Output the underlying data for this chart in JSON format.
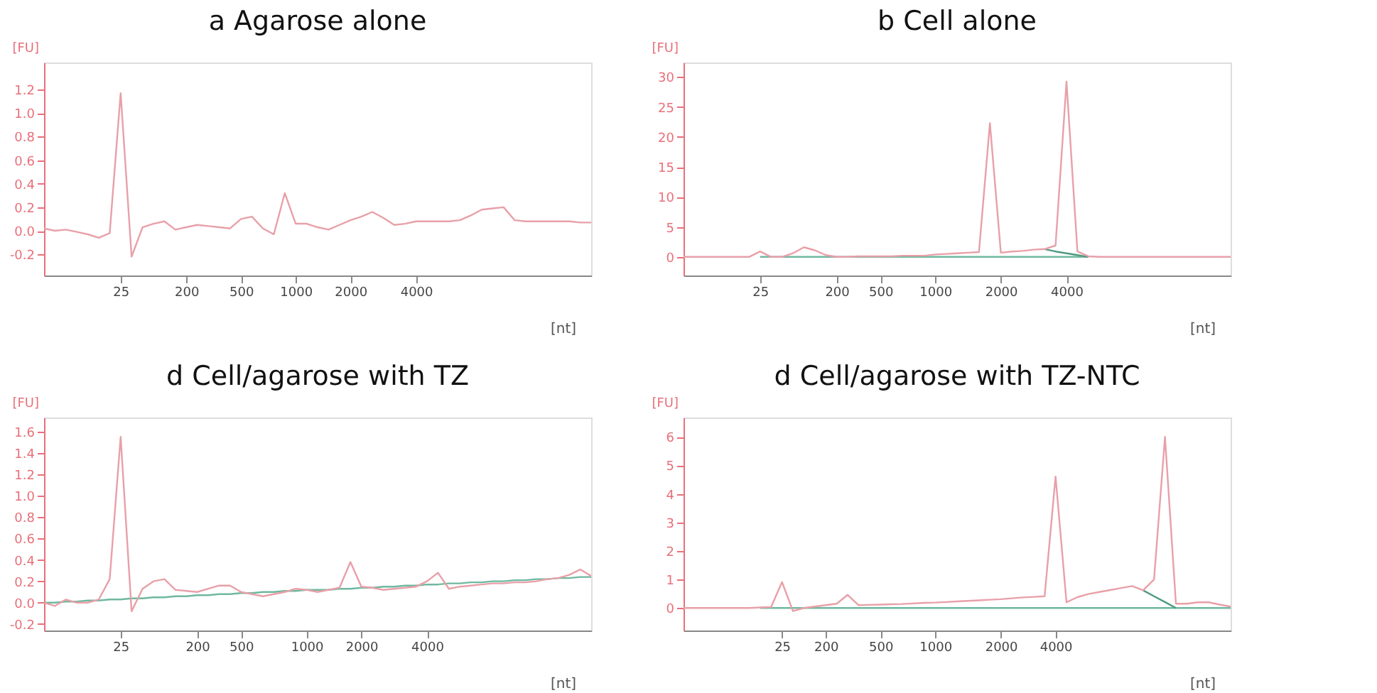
{
  "chart_data": [
    {
      "type": "line",
      "title": "a Agarose alone",
      "xlabel": "[nt]",
      "ylabel": "[FU]",
      "grid": false,
      "categories": [
        null,
        null,
        null,
        null,
        null,
        null,
        null,
        "25",
        null,
        null,
        null,
        null,
        null,
        "200",
        null,
        null,
        null,
        null,
        "500",
        null,
        null,
        null,
        null,
        "1000",
        null,
        null,
        null,
        null,
        "2000",
        null,
        null,
        null,
        null,
        null,
        "4000",
        null,
        null,
        null,
        null,
        null,
        null,
        null,
        null,
        null,
        null,
        null,
        null,
        null,
        null,
        null,
        null
      ],
      "ylim": [
        -0.38,
        1.43
      ],
      "yticks": [
        {
          "value": -0.2,
          "label": "-0.2"
        },
        {
          "value": 0,
          "label": "0.0"
        },
        {
          "value": 0.2,
          "label": "0.2"
        },
        {
          "value": 0.4,
          "label": "0.4"
        },
        {
          "value": 0.6,
          "label": "0.6"
        },
        {
          "value": 0.8,
          "label": "0.8"
        },
        {
          "value": 1.0,
          "label": "1.0"
        },
        {
          "value": 1.2,
          "label": "1.2"
        }
      ],
      "series": [
        {
          "color": "#e8a0a8",
          "values": [
            0.02,
            0.0,
            0.01,
            -0.01,
            -0.03,
            -0.06,
            -0.02,
            1.17,
            -0.22,
            0.03,
            0.06,
            0.08,
            0.01,
            0.03,
            0.05,
            0.04,
            0.03,
            0.02,
            0.1,
            0.12,
            0.02,
            -0.03,
            0.32,
            0.06,
            0.06,
            0.03,
            0.01,
            0.05,
            0.09,
            0.12,
            0.16,
            0.11,
            0.05,
            0.06,
            0.08,
            0.08,
            0.08,
            0.08,
            0.09,
            0.13,
            0.18,
            0.19,
            0.2,
            0.09,
            0.08,
            0.08,
            0.08,
            0.08,
            0.08,
            0.07,
            0.07
          ]
        }
      ]
    },
    {
      "type": "line",
      "title": "b Cell alone",
      "xlabel": "[nt]",
      "ylabel": "[FU]",
      "grid": false,
      "categories": [
        null,
        null,
        null,
        null,
        null,
        null,
        null,
        "25",
        null,
        null,
        null,
        null,
        null,
        null,
        "200",
        null,
        null,
        null,
        "500",
        null,
        null,
        null,
        null,
        "1000",
        null,
        null,
        null,
        null,
        null,
        "2000",
        null,
        null,
        null,
        null,
        null,
        "4000",
        null,
        null,
        null,
        null,
        null,
        null,
        null,
        null,
        null,
        null,
        null,
        null,
        null,
        null,
        null
      ],
      "ylim": [
        -3.1,
        32.4
      ],
      "yticks": [
        0,
        5,
        10,
        15,
        20,
        25,
        30
      ],
      "series": [
        {
          "color": "#6fb8a0",
          "values": [
            null,
            null,
            null,
            null,
            null,
            null,
            null,
            0,
            null,
            null,
            0,
            0,
            0,
            0,
            null,
            null,
            0,
            0,
            0,
            0,
            0,
            0,
            0,
            0,
            0,
            0,
            0,
            0,
            0,
            0,
            0,
            0,
            0,
            0,
            0,
            0,
            0,
            0,
            null,
            null,
            null,
            null,
            null,
            null,
            null,
            null,
            null,
            null,
            null,
            null,
            null
          ]
        },
        {
          "color": "#4f9a80",
          "values": [
            null,
            null,
            null,
            null,
            null,
            null,
            null,
            null,
            null,
            null,
            null,
            null,
            null,
            null,
            null,
            null,
            null,
            null,
            null,
            null,
            null,
            null,
            null,
            null,
            null,
            null,
            null,
            null,
            null,
            null,
            null,
            null,
            null,
            1.3,
            0.9,
            0.6,
            0.3,
            0,
            null,
            null,
            null,
            null,
            null,
            null,
            null,
            null,
            null,
            null,
            null,
            null,
            null
          ]
        },
        {
          "color": "#e8a0a8",
          "values": [
            0,
            0,
            0,
            0,
            0,
            0,
            0,
            0.9,
            0,
            0,
            0.6,
            1.6,
            1.1,
            0.3,
            0,
            0,
            0.1,
            0.1,
            0.1,
            0.1,
            0.2,
            0.2,
            0.2,
            0.4,
            0.5,
            0.6,
            0.7,
            0.8,
            22.3,
            0.7,
            0.9,
            1.0,
            1.2,
            1.3,
            1.9,
            29.2,
            0.9,
            0.1,
            0,
            0,
            0,
            0,
            0,
            0,
            0,
            0,
            0,
            0,
            0,
            0,
            0
          ]
        }
      ]
    },
    {
      "type": "line",
      "title": "d Cell/agarose with TZ",
      "xlabel": "[nt]",
      "ylabel": "[FU]",
      "grid": false,
      "categories": [
        null,
        null,
        null,
        null,
        null,
        null,
        null,
        "25",
        null,
        null,
        null,
        null,
        null,
        null,
        "200",
        null,
        null,
        null,
        "500",
        null,
        null,
        null,
        null,
        null,
        "1000",
        null,
        null,
        null,
        null,
        "2000",
        null,
        null,
        null,
        null,
        null,
        "4000",
        null,
        null,
        null,
        null,
        null,
        null,
        null,
        null,
        null,
        null,
        null,
        null,
        null,
        null,
        null
      ],
      "ylim": [
        -0.26,
        1.73
      ],
      "yticks": [
        {
          "value": -0.2,
          "label": "-0.2"
        },
        {
          "value": 0,
          "label": "0.0"
        },
        {
          "value": 0.2,
          "label": "0.2"
        },
        {
          "value": 0.4,
          "label": "0.4"
        },
        {
          "value": 0.6,
          "label": "0.6"
        },
        {
          "value": 0.8,
          "label": "0.8"
        },
        {
          "value": 1.0,
          "label": "1.0"
        },
        {
          "value": 1.2,
          "label": "1.2"
        },
        {
          "value": 1.4,
          "label": "1.4"
        },
        {
          "value": 1.6,
          "label": "1.6"
        }
      ],
      "series": [
        {
          "color": "#6fb8a0",
          "values": [
            0,
            0,
            0.01,
            0.01,
            0.02,
            0.02,
            0.03,
            0.03,
            0.04,
            0.04,
            0.05,
            0.05,
            0.06,
            0.06,
            0.07,
            0.07,
            0.08,
            0.08,
            0.09,
            0.09,
            0.1,
            0.1,
            0.11,
            0.11,
            0.12,
            0.12,
            0.12,
            0.13,
            0.13,
            0.14,
            0.14,
            0.15,
            0.15,
            0.16,
            0.16,
            0.17,
            0.17,
            0.18,
            0.18,
            0.19,
            0.19,
            0.2,
            0.2,
            0.21,
            0.21,
            0.22,
            0.22,
            0.23,
            0.23,
            0.24,
            0.24
          ]
        },
        {
          "color": "#e8a0a8",
          "values": [
            0,
            -0.03,
            0.03,
            0.0,
            0.0,
            0.03,
            0.22,
            1.55,
            -0.08,
            0.13,
            0.2,
            0.22,
            0.12,
            0.11,
            0.1,
            0.13,
            0.16,
            0.16,
            0.1,
            0.08,
            0.06,
            0.08,
            0.1,
            0.13,
            0.12,
            0.1,
            0.12,
            0.14,
            0.38,
            0.15,
            0.14,
            0.12,
            0.13,
            0.14,
            0.15,
            0.2,
            0.28,
            0.13,
            0.15,
            0.16,
            0.17,
            0.18,
            0.18,
            0.19,
            0.19,
            0.2,
            0.22,
            0.23,
            0.26,
            0.31,
            0.25
          ]
        }
      ]
    },
    {
      "type": "line",
      "title": "d Cell/agarose with TZ-NTC",
      "xlabel": "[nt]",
      "ylabel": "[FU]",
      "grid": false,
      "categories": [
        null,
        null,
        null,
        null,
        null,
        null,
        null,
        null,
        null,
        "25",
        null,
        null,
        null,
        "200",
        null,
        null,
        null,
        null,
        "500",
        null,
        null,
        null,
        null,
        "1000",
        null,
        null,
        null,
        null,
        null,
        "2000",
        null,
        null,
        null,
        null,
        "4000",
        null,
        null,
        null,
        null,
        null,
        null,
        null,
        null,
        null,
        null,
        null,
        null,
        null,
        null,
        null,
        null
      ],
      "ylim": [
        -0.79,
        6.68
      ],
      "yticks": [
        0,
        1,
        2,
        3,
        4,
        5,
        6
      ],
      "series": [
        {
          "color": "#6fb8a0",
          "values": [
            null,
            null,
            null,
            null,
            null,
            null,
            null,
            0,
            0,
            0,
            0,
            null,
            0,
            0,
            0,
            0,
            0,
            0,
            0,
            0,
            0,
            0,
            0,
            0,
            0,
            0,
            0,
            0,
            0,
            0,
            0,
            0,
            0,
            0,
            0,
            0,
            0,
            0,
            0,
            0,
            0,
            0,
            0,
            0,
            0,
            0,
            0,
            0,
            0,
            0,
            0
          ]
        },
        {
          "color": "#4f9a80",
          "values": [
            null,
            null,
            null,
            null,
            null,
            null,
            null,
            null,
            null,
            null,
            null,
            null,
            null,
            null,
            null,
            null,
            null,
            null,
            null,
            null,
            null,
            null,
            null,
            null,
            null,
            null,
            null,
            null,
            null,
            null,
            null,
            null,
            null,
            null,
            null,
            null,
            null,
            null,
            null,
            null,
            null,
            null,
            0.62,
            0.41,
            0.21,
            0,
            null,
            null,
            null,
            null,
            null
          ]
        },
        {
          "color": "#e8a0a8",
          "values": [
            0,
            0,
            0,
            0,
            0,
            0,
            0,
            0.02,
            0.03,
            0.91,
            -0.11,
            0,
            0.05,
            0.1,
            0.15,
            0.46,
            0.1,
            0.11,
            0.12,
            0.13,
            0.14,
            0.16,
            0.18,
            0.19,
            0.21,
            0.23,
            0.25,
            0.27,
            0.29,
            0.31,
            0.34,
            0.37,
            0.39,
            0.41,
            4.61,
            0.2,
            0.38,
            0.49,
            0.56,
            0.63,
            0.7,
            0.77,
            0.62,
            1.0,
            6.0,
            0.15,
            0.15,
            0.2,
            0.2,
            0.12,
            0.05
          ]
        }
      ]
    }
  ]
}
